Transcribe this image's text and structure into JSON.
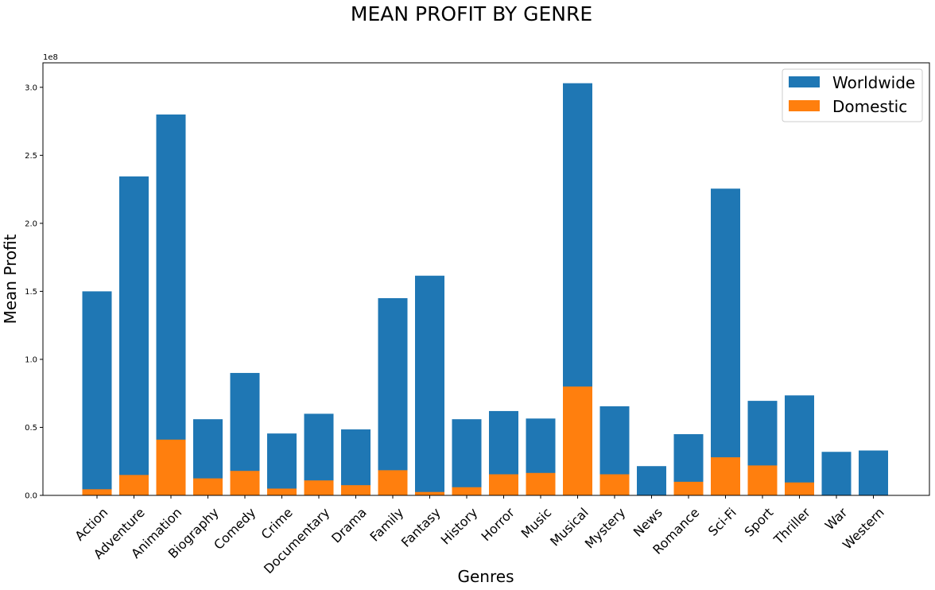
{
  "chart_data": {
    "type": "bar",
    "title": "MEAN PROFIT BY GENRE",
    "xlabel": "Genres",
    "ylabel": "Mean Profit",
    "y_offset_label": "1e8",
    "y_scale": 100000000,
    "ylim": [
      0,
      3.18
    ],
    "yticks": [
      0.0,
      0.5,
      1.0,
      1.5,
      2.0,
      2.5,
      3.0
    ],
    "ytick_labels": [
      "0.0",
      "0.5",
      "1.0",
      "1.5",
      "2.0",
      "2.5",
      "3.0"
    ],
    "grid": false,
    "legend_position": "top-right",
    "categories": [
      "Action",
      "Adventure",
      "Animation",
      "Biography",
      "Comedy",
      "Crime",
      "Documentary",
      "Drama",
      "Family",
      "Fantasy",
      "History",
      "Horror",
      "Music",
      "Musical",
      "Mystery",
      "News",
      "Romance",
      "Sci-Fi",
      "Sport",
      "Thriller",
      "War",
      "Western"
    ],
    "series": [
      {
        "name": "Worldwide",
        "color": "#1f77b4",
        "values": [
          1.5,
          2.345,
          2.8,
          0.56,
          0.9,
          0.455,
          0.6,
          0.485,
          1.45,
          1.615,
          0.56,
          0.62,
          0.565,
          3.03,
          0.655,
          0.215,
          0.45,
          2.255,
          0.695,
          0.735,
          0.32,
          0.33
        ]
      },
      {
        "name": "Domestic",
        "color": "#ff7f0e",
        "values": [
          0.045,
          0.15,
          0.41,
          0.125,
          0.18,
          0.05,
          0.11,
          0.075,
          0.185,
          0.025,
          0.06,
          0.155,
          0.165,
          0.8,
          0.155,
          0.0,
          0.1,
          0.28,
          0.22,
          0.095,
          0.0,
          0.0
        ]
      }
    ]
  }
}
